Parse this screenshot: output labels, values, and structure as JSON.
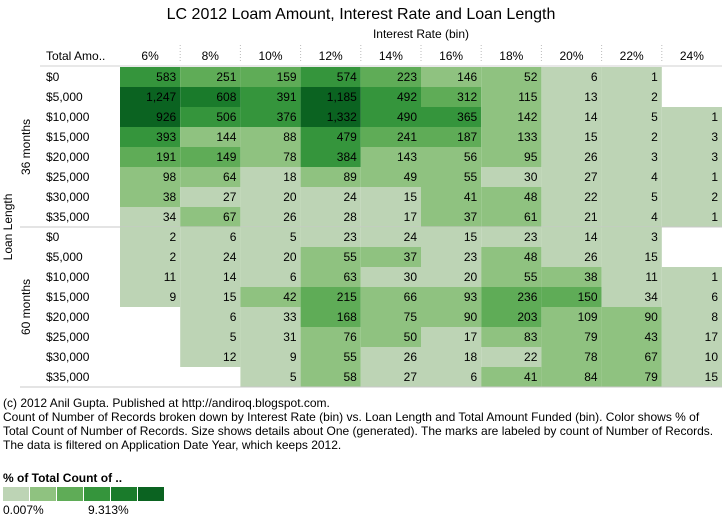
{
  "title": "LC 2012 Loam Amount, Interest Rate and Loan Length",
  "chart_data": {
    "type": "heatmap",
    "title": "LC 2012 Loam Amount, Interest Rate and Loan Length",
    "column_axis_title": "Interest Rate (bin)",
    "row_axis_title": "Loan Length",
    "row_header_label": "Total Amo..",
    "columns": [
      "6%",
      "8%",
      "10%",
      "12%",
      "14%",
      "16%",
      "18%",
      "20%",
      "22%",
      "24%"
    ],
    "groups": [
      {
        "name": "36 months",
        "rows": [
          {
            "label": "$0",
            "values": [
              583,
              251,
              159,
              574,
              223,
              146,
              52,
              6,
              1,
              null
            ]
          },
          {
            "label": "$5,000",
            "values": [
              1247,
              608,
              391,
              1185,
              492,
              312,
              115,
              13,
              2,
              null
            ]
          },
          {
            "label": "$10,000",
            "values": [
              926,
              506,
              376,
              1332,
              490,
              365,
              142,
              14,
              5,
              1
            ]
          },
          {
            "label": "$15,000",
            "values": [
              393,
              144,
              88,
              479,
              241,
              187,
              133,
              15,
              2,
              3
            ]
          },
          {
            "label": "$20,000",
            "values": [
              191,
              149,
              78,
              384,
              143,
              56,
              95,
              26,
              3,
              3
            ]
          },
          {
            "label": "$25,000",
            "values": [
              98,
              64,
              18,
              89,
              49,
              55,
              30,
              27,
              4,
              1
            ]
          },
          {
            "label": "$30,000",
            "values": [
              38,
              27,
              20,
              24,
              15,
              41,
              48,
              22,
              5,
              2
            ]
          },
          {
            "label": "$35,000",
            "values": [
              34,
              67,
              26,
              28,
              17,
              37,
              61,
              21,
              4,
              1
            ]
          }
        ]
      },
      {
        "name": "60 months",
        "rows": [
          {
            "label": "$0",
            "values": [
              2,
              6,
              5,
              23,
              24,
              15,
              23,
              14,
              3,
              null
            ]
          },
          {
            "label": "$5,000",
            "values": [
              2,
              24,
              20,
              55,
              37,
              23,
              48,
              26,
              15,
              null
            ]
          },
          {
            "label": "$10,000",
            "values": [
              11,
              14,
              6,
              63,
              30,
              20,
              55,
              38,
              11,
              1
            ]
          },
          {
            "label": "$15,000",
            "values": [
              9,
              15,
              42,
              215,
              66,
              93,
              236,
              150,
              34,
              6
            ]
          },
          {
            "label": "$20,000",
            "values": [
              null,
              6,
              33,
              168,
              75,
              90,
              203,
              109,
              90,
              8
            ]
          },
          {
            "label": "$25,000",
            "values": [
              null,
              5,
              31,
              76,
              50,
              17,
              83,
              79,
              43,
              17
            ]
          },
          {
            "label": "$30,000",
            "values": [
              null,
              12,
              9,
              55,
              26,
              18,
              22,
              78,
              67,
              10
            ]
          },
          {
            "label": "$35,000",
            "values": [
              null,
              null,
              5,
              58,
              27,
              6,
              41,
              84,
              79,
              15
            ]
          }
        ]
      }
    ],
    "color_legend": {
      "title": "% of Total Count of ..",
      "min_label": "0.007%",
      "max_label": "9.313%",
      "colors": [
        "#bdd4b5",
        "#8fc280",
        "#5fac57",
        "#35953c",
        "#1a7b2b",
        "#0b6321"
      ]
    }
  },
  "footer": {
    "copyright": "(c) 2012 Anil Gupta. Published at http://andiroq.blogspot.com.",
    "description": "Count of Number of Records broken down by Interest Rate (bin) vs. Loan Length and Total Amount Funded (bin).  Color shows % of Total Count of Number of Records.  Size shows details about One (generated).  The marks are labeled by count of Number of Records. The data is filtered on Application Date Year, which keeps 2012."
  }
}
